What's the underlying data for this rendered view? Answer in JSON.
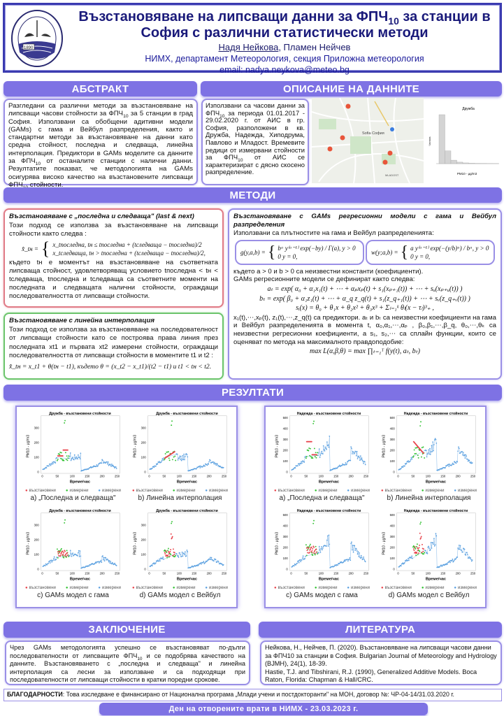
{
  "header": {
    "title_part1": "Възстановяване на липсващи данни за ФПЧ",
    "title_sub": "10",
    "title_part2": " за станции в",
    "title_line2": "София с различни статистически методи",
    "author_main": "Надя Нейкова",
    "author_rest": ", Пламен Нейчев",
    "affiliation": "НИМХ, департамент Метеорология, секция Приложна метеорология",
    "email": "email: nadya.neykova@meteo.bg",
    "logo_text": "1890"
  },
  "sections": {
    "abstract": "АБСТРАКТ",
    "data": "ОПИСАНИЕ НА ДАННИТЕ",
    "methods": "МЕТОДИ",
    "results": "РЕЗУЛТАТИ",
    "conclusion": "ЗАКЛЮЧЕНИЕ",
    "literature": "ЛИТЕРАТУРА"
  },
  "abstract": {
    "p1": "Разгледани са различни методи за възстановяване на липсващи часови стойности за ФПЧ",
    "s1": "10",
    "p2": " за 5 станции в град София. Използвани са обобщени адитивни модели (GAMs) с гама и Вейбул разпределения, както и стандартни методи за възстановяване на данни като средна стойност, последна и следваща, линейна интерполация. Предиктори в GAMs моделите са данните за ФПЧ",
    "s2": "10",
    "p3": " от останалите станции с налични данни. Резултатите показват, че методологията на GAMs осигурява високо качество на възстановените липсващи ФПЧ",
    "s3": "10",
    "p4": " стойности."
  },
  "data_desc": {
    "p1": "Използвани са часови данни за ФПЧ",
    "s1": "10",
    "p2": " за периода 01.01.2017 - 29.02.2020 г. от АИС в гр. София, разположени в кв. Дружба, Надежда, Хиподрума, Павлово и Младост. Времевите редици от измервани стойности за ФПЧ",
    "s2": "10",
    "p3": " от АИС се характеризират с дясно скосено разпределение.",
    "map_label": "Sofia София",
    "map_label2": "MLADOST",
    "histogram": {
      "title": "Дружба",
      "xlabel": "PM10 - µg/m3",
      "ylabel": "Честота",
      "type": "bar"
    }
  },
  "methods": {
    "last_next": {
      "title": "Възстановяване с „последна и следваща\" (last & next)",
      "intro": "Този подход се използва за възстановяване на липсващи стойности както следва :",
      "lhs": "x̂_tн =",
      "case1": "x_tпоследна,  tн ≤ tпоследна + (tследваща − tпоследна)/2",
      "case2": "x_tследваща,  tн > tпоследна + (tследваща − tпоследна)/2,",
      "text": "където tн е моментът на възстановяване на съответната липсваща стойност, удовлетворяващ условието tпоследна < tн < tследваща, tпоследна и tследваща са съответните моменти на последната и следващата налични стойности, ограждащи последователността от липсващи стойности."
    },
    "linear": {
      "title": "Възстановяване с линейна интерполация",
      "text": "Този подход се използва за възстановяване на последователност от липсващи стойности като се построява права линия през последната xt1 и първата xt2 измерени стойности, ограждащи последователността от липсващи стойности в моментите t1 и t2 :",
      "formula": "x̂_tн = x_t1 + θ(tн − t1), където θ = (x_t2 − x_t1)/(t2 − t1) и t1 < tн < t2."
    },
    "gams": {
      "title": "Възстановяване с GAMs регресионни модели с гама и Вейбул разпределения",
      "intro": "Използвани са плътностите на гама и Вейбул разпределенията:",
      "gamma_lhs": "g(y,a,b) =",
      "gamma_case1": "bᵃ y⁽ᵃ⁻¹⁾ exp(−by) / Γ(a),   y > 0",
      "gamma_case2": "0   y = 0,",
      "weibull_lhs": "w(y;a,b) =",
      "weibull_case1": "a y⁽ᵃ⁻¹⁾ exp(−(y/b)ᵃ) / bᵃ,   y > 0",
      "weibull_case2": "0   y = 0,",
      "constants": "където a > 0 и b > 0 са неизвестни константи (коефициенти).",
      "define": "GAMs регресионните модели се дефинират както следва:",
      "eq_a": "aₜ = exp( α₀ + α₁x₁(t) + ⋯ + αₚxₚ(t) + s₁(xₚ₊₁(t)) + ⋯ + sᵤ(xₚ₊ᵤ(t)) )",
      "eq_b": "bₜ = exp( β₀ + α₁z₁(t) + ⋯ + α_q z_q(t) + s₁(z_q₊₁(t)) + ⋯ + sᵥ(z_q₊ᵥ(t)) )",
      "eq_s": "sᵢ(x) = θ₀ + θ₁x + θ₂x² + θ₃x³ + Σₗ₌₁ᵏ θₗ(x − τₗ)³₊ ,",
      "text": "x₁(t),⋯,xₚ(t), z₁(t),⋯,z_q(t) са предиктори. aₜ и bₜ са неизвестни коефициенти на гама и Вейбул разпределенията в момента t, α₀,α₁,⋯,αₚ , β₀,β₁,⋯,β_q, θ₀,⋯,θₖ са неизвестни регресионни коефициенти, а s₁, s₂,⋯ са сплайн функции, които се оценяват по метода на максималното правдоподобие:",
      "eq_ml": "max L(α,β,θ) = max ∏ₜ₌₁ᵀ f(y(t), aₜ, bₜ)"
    }
  },
  "chart_data": [
    {
      "type": "scatter",
      "station": "druzhba",
      "title": "Дружба - възстановени стойности",
      "xlabel": "Време/час",
      "ylabel": "PM10 - µg/m3",
      "xticks": [
        "0",
        "50",
        "100",
        "150",
        "200",
        "250"
      ],
      "yticks": [
        "0",
        "100",
        "200",
        "300"
      ],
      "xlim": [
        0,
        250
      ],
      "ylim": [
        0,
        370
      ],
      "legend": [
        "възстановени",
        "измерени",
        "измерени"
      ],
      "caption": "a) „Последна и следваща\"",
      "method": "last_next"
    },
    {
      "type": "scatter",
      "station": "druzhba",
      "title": "Дружба - възстановени стойности",
      "xlabel": "Време/час",
      "ylabel": "PM10 - µg/m3",
      "xticks": [
        "0",
        "50",
        "100",
        "150",
        "200",
        "250"
      ],
      "yticks": [
        "0",
        "100",
        "200",
        "300"
      ],
      "xlim": [
        0,
        250
      ],
      "ylim": [
        0,
        370
      ],
      "legend": [
        "възстановени",
        "измерени",
        "измерени"
      ],
      "caption": "b) Линейна интерполация",
      "method": "linear"
    },
    {
      "type": "scatter",
      "station": "druzhba",
      "title": "Дружба - възстановени стойности",
      "xlabel": "Време/час",
      "ylabel": "PM10 - µg/m3",
      "xticks": [
        "0",
        "50",
        "100",
        "150",
        "200",
        "250"
      ],
      "yticks": [
        "0",
        "100",
        "200",
        "300"
      ],
      "xlim": [
        0,
        250
      ],
      "ylim": [
        0,
        370
      ],
      "legend": [
        "възстановени",
        "измерени",
        "измерени"
      ],
      "caption": "c) GAMs модел с гама",
      "method": "gamma"
    },
    {
      "type": "scatter",
      "station": "druzhba",
      "title": "Дружба - възстановени стойности",
      "xlabel": "Време/час",
      "ylabel": "PM10 - µg/m3",
      "xticks": [
        "0",
        "50",
        "100",
        "150",
        "200",
        "250"
      ],
      "yticks": [
        "0",
        "100",
        "200",
        "300"
      ],
      "xlim": [
        0,
        250
      ],
      "ylim": [
        0,
        370
      ],
      "legend": [
        "възстановени",
        "измерени",
        "измерени"
      ],
      "caption": "d) GAMs модел с Вейбул",
      "method": "weibull"
    },
    {
      "type": "scatter",
      "station": "nadezhda",
      "title": "Надежда - възстановени стойности",
      "xlabel": "Време/час",
      "ylabel": "PM10 - µg/m3",
      "xticks": [
        "0",
        "50",
        "100",
        "150",
        "200",
        "250"
      ],
      "yticks": [
        "0",
        "100",
        "200",
        "300",
        "400",
        "500"
      ],
      "xlim": [
        0,
        250
      ],
      "ylim": [
        0,
        500
      ],
      "legend": [
        "възстановени",
        "измерени",
        "измерени"
      ],
      "caption": "a) „Последна и следваща\"",
      "method": "last_next"
    },
    {
      "type": "scatter",
      "station": "nadezhda",
      "title": "Надежда - възстановени стойности",
      "xlabel": "Време/час",
      "ylabel": "PM10 - µg/m3",
      "xticks": [
        "0",
        "50",
        "100",
        "150",
        "200",
        "250"
      ],
      "yticks": [
        "0",
        "100",
        "200",
        "300",
        "400",
        "500"
      ],
      "xlim": [
        0,
        250
      ],
      "ylim": [
        0,
        500
      ],
      "legend": [
        "възстановени",
        "измерени",
        "измерени"
      ],
      "caption": "b) Линейна интерполация",
      "method": "linear"
    },
    {
      "type": "scatter",
      "station": "nadezhda",
      "title": "Надежда - възстановени стойности",
      "xlabel": "Време/час",
      "ylabel": "PM10 - µg/m3",
      "xticks": [
        "0",
        "50",
        "100",
        "150",
        "200",
        "250"
      ],
      "yticks": [
        "0",
        "100",
        "200",
        "300",
        "400",
        "500"
      ],
      "xlim": [
        0,
        250
      ],
      "ylim": [
        0,
        500
      ],
      "legend": [
        "възстановени",
        "измерени",
        "измерени"
      ],
      "caption": "c) GAMs модел с гама",
      "method": "gamma"
    },
    {
      "type": "scatter",
      "station": "nadezhda",
      "title": "Надежда - възстановени стойности",
      "xlabel": "Време/час",
      "ylabel": "PM10 - µg/m3",
      "xticks": [
        "0",
        "50",
        "100",
        "150",
        "200",
        "250"
      ],
      "yticks": [
        "0",
        "100",
        "200",
        "300",
        "400",
        "500"
      ],
      "xlim": [
        0,
        250
      ],
      "ylim": [
        0,
        500
      ],
      "legend": [
        "възстановени",
        "измерени",
        "измерени"
      ],
      "caption": "d) GAMs модел с Вейбул",
      "method": "weibull"
    }
  ],
  "series_colors": {
    "restored": "#e8434b",
    "measured_gap": "#33c233",
    "measured": "#5aa0e0"
  },
  "conclusion": {
    "p1": "Чрез GAMs методологията успешно се възстановяват по-дълги последователности от липсващите ФПЧ",
    "s1": "10",
    "p2": " и се подобрява качеството на данните. Възстановяването с „последна и следваща\" и линейна интерполация са лесни за използване и са подходящи при последователности от липсващи стойности в кратки поредни срокове."
  },
  "literature": {
    "ref1": "Нейкова, Н., Нейчев, П. (2020). Възстановяване на липсващи часови данни за ФПЧ10 за станции в София. Bulgarian Journal of Meteorology and Hydrology (BJMH), 24(1), 18-39.",
    "ref2": "Hastie, T.J. and Tibshirani, R.J. (1990), Generalized Additive Models. Boca Raton, Florida: Chapman & Hall/CRC."
  },
  "ack": {
    "label": "БЛАГОДАРНОСТИ",
    "text": ": Това изследване е финансирано от Национална програма „Млади учени и постдокторанти\" на  МОН, договор №: ЧР-04-14/31.03.2020 г."
  },
  "footer": "Ден на отворените врати в НИМХ - 23.03.2023 г.",
  "colors": {
    "accent": "#7e72e4",
    "header_border": "#3b3bb0",
    "title": "#1a1a7a"
  }
}
